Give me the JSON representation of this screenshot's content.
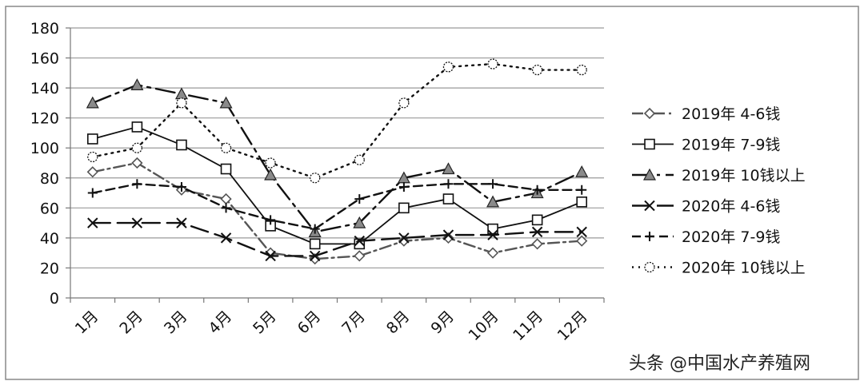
{
  "chart_data": {
    "type": "line",
    "categories": [
      "1月",
      "2月",
      "3月",
      "4月",
      "5月",
      "6月",
      "7月",
      "8月",
      "9月",
      "10月",
      "11月",
      "12月"
    ],
    "ylim": [
      0,
      180
    ],
    "y_ticks": [
      0,
      20,
      40,
      60,
      80,
      100,
      120,
      140,
      160,
      180
    ],
    "grid": "horizontal",
    "legend_position": "right",
    "series": [
      {
        "name": "2019年 4-6钱",
        "marker": "diamond",
        "dash": "dash-dot",
        "color": "#555555",
        "values": [
          84,
          90,
          72,
          66,
          30,
          26,
          28,
          38,
          40,
          30,
          36,
          38
        ]
      },
      {
        "name": "2019年 7-9钱",
        "marker": "square",
        "dash": "solid",
        "color": "#111111",
        "values": [
          106,
          114,
          102,
          86,
          48,
          36,
          36,
          60,
          66,
          46,
          52,
          64
        ]
      },
      {
        "name": "2019年 10钱以上",
        "marker": "triangle",
        "dash": "long-dash-dot",
        "color": "#111111",
        "values": [
          130,
          142,
          136,
          130,
          82,
          44,
          50,
          80,
          86,
          64,
          70,
          84
        ]
      },
      {
        "name": "2020年 4-6钱",
        "marker": "x",
        "dash": "long-dash",
        "color": "#111111",
        "values": [
          50,
          50,
          50,
          40,
          28,
          28,
          38,
          40,
          42,
          42,
          44,
          44
        ]
      },
      {
        "name": "2020年 7-9钱",
        "marker": "plus",
        "dash": "dash",
        "color": "#111111",
        "values": [
          70,
          76,
          74,
          60,
          52,
          46,
          66,
          74,
          76,
          76,
          72,
          72
        ]
      },
      {
        "name": "2020年 10钱以上",
        "marker": "circle",
        "dash": "dot",
        "color": "#111111",
        "values": [
          94,
          100,
          130,
          100,
          90,
          80,
          92,
          130,
          154,
          156,
          152,
          152
        ]
      }
    ]
  },
  "watermark": "头条 @中国水产养殖网"
}
